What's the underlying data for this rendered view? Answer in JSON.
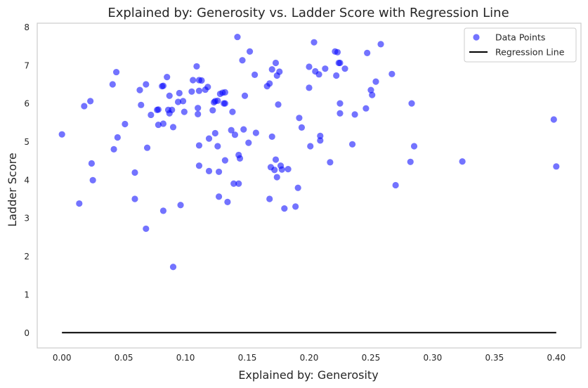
{
  "chart_data": {
    "type": "scatter",
    "title": "Explained by: Generosity vs. Ladder Score with Regression Line",
    "xlabel": "Explained by: Generosity",
    "ylabel": "Ladder Score",
    "xlim": [
      -0.02,
      0.42
    ],
    "ylim": [
      -0.4,
      8.1
    ],
    "xticks": [
      "0.00",
      "0.05",
      "0.10",
      "0.15",
      "0.20",
      "0.25",
      "0.30",
      "0.35",
      "0.40"
    ],
    "yticks": [
      "0",
      "1",
      "2",
      "3",
      "4",
      "5",
      "6",
      "7",
      "8"
    ],
    "grid": false,
    "legend_position": "top-right",
    "colors": {
      "points": "#0000ff",
      "regression": "#000000",
      "frame": "#cccccc"
    },
    "series": [
      {
        "name": "Data Points",
        "kind": "scatter",
        "points": [
          [
            0.0,
            5.19
          ],
          [
            0.014,
            3.38
          ],
          [
            0.018,
            5.93
          ],
          [
            0.023,
            6.06
          ],
          [
            0.024,
            4.43
          ],
          [
            0.025,
            3.99
          ],
          [
            0.041,
            6.5
          ],
          [
            0.042,
            4.8
          ],
          [
            0.044,
            6.82
          ],
          [
            0.045,
            5.11
          ],
          [
            0.051,
            5.46
          ],
          [
            0.059,
            4.19
          ],
          [
            0.059,
            3.5
          ],
          [
            0.063,
            6.35
          ],
          [
            0.064,
            5.96
          ],
          [
            0.068,
            6.5
          ],
          [
            0.069,
            4.84
          ],
          [
            0.068,
            2.72
          ],
          [
            0.072,
            5.7
          ],
          [
            0.077,
            5.83
          ],
          [
            0.078,
            5.44
          ],
          [
            0.078,
            5.84
          ],
          [
            0.081,
            6.45
          ],
          [
            0.082,
            6.46
          ],
          [
            0.082,
            5.47
          ],
          [
            0.082,
            3.19
          ],
          [
            0.085,
            6.69
          ],
          [
            0.086,
            5.83
          ],
          [
            0.087,
            6.2
          ],
          [
            0.087,
            5.74
          ],
          [
            0.089,
            5.83
          ],
          [
            0.09,
            5.38
          ],
          [
            0.09,
            1.72
          ],
          [
            0.094,
            6.04
          ],
          [
            0.095,
            6.27
          ],
          [
            0.096,
            3.34
          ],
          [
            0.098,
            6.06
          ],
          [
            0.099,
            5.78
          ],
          [
            0.105,
            6.31
          ],
          [
            0.106,
            6.61
          ],
          [
            0.109,
            6.97
          ],
          [
            0.11,
            5.72
          ],
          [
            0.11,
            5.88
          ],
          [
            0.111,
            6.61
          ],
          [
            0.111,
            6.33
          ],
          [
            0.111,
            4.9
          ],
          [
            0.111,
            4.37
          ],
          [
            0.113,
            6.6
          ],
          [
            0.116,
            6.36
          ],
          [
            0.118,
            6.43
          ],
          [
            0.119,
            5.08
          ],
          [
            0.119,
            4.23
          ],
          [
            0.122,
            5.82
          ],
          [
            0.123,
            6.03
          ],
          [
            0.124,
            6.06
          ],
          [
            0.124,
            5.22
          ],
          [
            0.126,
            6.07
          ],
          [
            0.126,
            4.88
          ],
          [
            0.127,
            4.21
          ],
          [
            0.127,
            3.56
          ],
          [
            0.128,
            6.25
          ],
          [
            0.13,
            6.28
          ],
          [
            0.131,
            6.0
          ],
          [
            0.132,
            6.0
          ],
          [
            0.132,
            6.29
          ],
          [
            0.132,
            4.51
          ],
          [
            0.134,
            3.42
          ],
          [
            0.137,
            5.3
          ],
          [
            0.138,
            5.78
          ],
          [
            0.139,
            3.9
          ],
          [
            0.14,
            5.18
          ],
          [
            0.142,
            7.74
          ],
          [
            0.143,
            4.65
          ],
          [
            0.143,
            3.9
          ],
          [
            0.144,
            4.56
          ],
          [
            0.146,
            7.13
          ],
          [
            0.147,
            5.32
          ],
          [
            0.148,
            6.2
          ],
          [
            0.151,
            4.97
          ],
          [
            0.152,
            7.36
          ],
          [
            0.156,
            6.75
          ],
          [
            0.157,
            5.23
          ],
          [
            0.166,
            6.45
          ],
          [
            0.168,
            6.52
          ],
          [
            0.168,
            3.5
          ],
          [
            0.169,
            4.33
          ],
          [
            0.17,
            6.89
          ],
          [
            0.17,
            5.13
          ],
          [
            0.172,
            4.26
          ],
          [
            0.173,
            7.06
          ],
          [
            0.173,
            4.53
          ],
          [
            0.174,
            6.73
          ],
          [
            0.174,
            4.07
          ],
          [
            0.175,
            5.97
          ],
          [
            0.176,
            6.83
          ],
          [
            0.177,
            4.37
          ],
          [
            0.178,
            4.27
          ],
          [
            0.18,
            3.25
          ],
          [
            0.183,
            4.28
          ],
          [
            0.189,
            3.3
          ],
          [
            0.191,
            3.79
          ],
          [
            0.192,
            5.62
          ],
          [
            0.194,
            5.37
          ],
          [
            0.2,
            6.96
          ],
          [
            0.2,
            6.41
          ],
          [
            0.201,
            4.88
          ],
          [
            0.204,
            7.6
          ],
          [
            0.205,
            6.84
          ],
          [
            0.208,
            6.76
          ],
          [
            0.209,
            5.15
          ],
          [
            0.209,
            5.03
          ],
          [
            0.213,
            6.91
          ],
          [
            0.217,
            4.46
          ],
          [
            0.221,
            7.36
          ],
          [
            0.222,
            6.73
          ],
          [
            0.223,
            7.34
          ],
          [
            0.224,
            7.06
          ],
          [
            0.225,
            5.74
          ],
          [
            0.225,
            6.0
          ],
          [
            0.225,
            7.06
          ],
          [
            0.229,
            6.91
          ],
          [
            0.235,
            4.93
          ],
          [
            0.237,
            5.71
          ],
          [
            0.246,
            5.87
          ],
          [
            0.247,
            7.32
          ],
          [
            0.25,
            6.35
          ],
          [
            0.251,
            6.22
          ],
          [
            0.254,
            6.57
          ],
          [
            0.258,
            7.55
          ],
          [
            0.267,
            6.77
          ],
          [
            0.27,
            3.86
          ],
          [
            0.282,
            4.47
          ],
          [
            0.283,
            6.0
          ],
          [
            0.285,
            4.88
          ],
          [
            0.324,
            4.48
          ],
          [
            0.398,
            5.58
          ],
          [
            0.4,
            4.35
          ]
        ]
      },
      {
        "name": "Regression Line",
        "kind": "line",
        "points": [
          [
            0.0,
            0.0
          ],
          [
            0.4,
            0.0
          ]
        ]
      }
    ]
  }
}
